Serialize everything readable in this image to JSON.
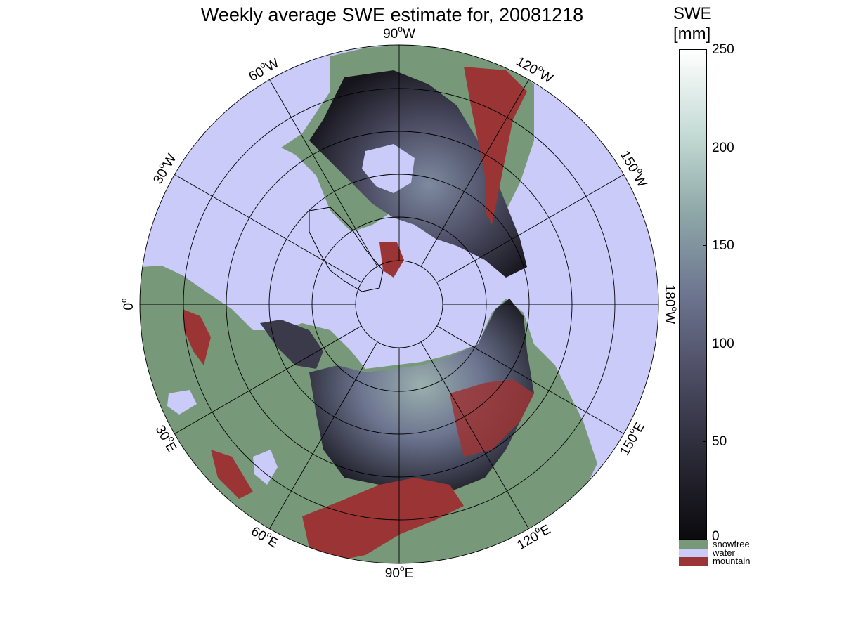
{
  "title": "Weekly average SWE estimate for, 20081218",
  "colorbar": {
    "title_line1": "SWE",
    "title_line2": "[mm]",
    "min": 0,
    "max": 250,
    "ticks": [
      "0",
      "50",
      "100",
      "150",
      "200",
      "250"
    ],
    "colors": [
      "#0b0a0e",
      "#2a2936",
      "#4c4c63",
      "#6d7590",
      "#8ea8a8",
      "#c6dcd6",
      "#ffffff"
    ]
  },
  "legend": [
    {
      "label": "snowfree",
      "color": "#77997a"
    },
    {
      "label": "water",
      "color": "#cbcbfa"
    },
    {
      "label": "mountain",
      "color": "#9b3535"
    }
  ],
  "longitude_labels": [
    {
      "deg": "90",
      "hem": "W"
    },
    {
      "deg": "120",
      "hem": "W"
    },
    {
      "deg": "150",
      "hem": "W"
    },
    {
      "deg": "180",
      "hem": "W"
    },
    {
      "deg": "150",
      "hem": "E"
    },
    {
      "deg": "120",
      "hem": "E"
    },
    {
      "deg": "90",
      "hem": "E"
    },
    {
      "deg": "60",
      "hem": "E"
    },
    {
      "deg": "30",
      "hem": "E"
    },
    {
      "deg": "0",
      "hem": ""
    },
    {
      "deg": "30",
      "hem": "W"
    },
    {
      "deg": "60",
      "hem": "W"
    }
  ]
}
